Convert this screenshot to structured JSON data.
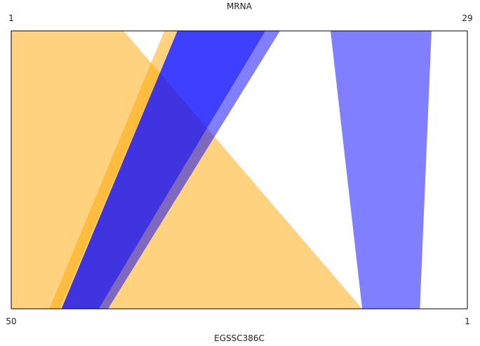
{
  "chart_data": {
    "type": "alignment",
    "top_track": {
      "name": "MRNA",
      "start_label": "1",
      "end_label": "29"
    },
    "bottom_track": {
      "name": "EGSSC386C",
      "start_label": "50",
      "end_label": "1"
    },
    "colors": {
      "orange": "#ffa500",
      "blue": "#0000ff"
    },
    "bands": [
      {
        "color": "#ffa500",
        "top": [
          1,
          7.9
        ],
        "bottom": [
          50,
          12.3
        ]
      },
      {
        "color": "#ffa500",
        "top": [
          10.4,
          11.2
        ],
        "bottom": [
          45.9,
          44.8
        ]
      },
      {
        "color": "#0000ff",
        "top": [
          11.2,
          17.5
        ],
        "bottom": [
          44.6,
          39.6
        ]
      },
      {
        "color": "#0000ff",
        "top": [
          11.2,
          16.6
        ],
        "bottom": [
          44.6,
          40.6
        ]
      },
      {
        "color": "#0000ff",
        "top": [
          20.6,
          26.8
        ],
        "bottom": [
          12.3,
          6.1
        ]
      }
    ]
  }
}
